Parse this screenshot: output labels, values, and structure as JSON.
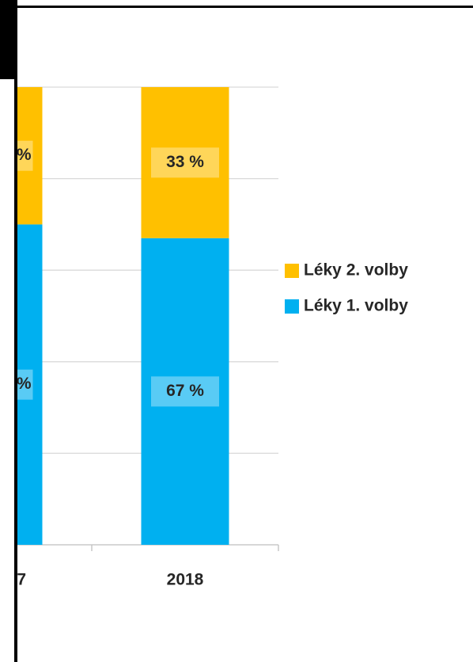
{
  "chart_data": {
    "type": "stacked_bar",
    "categories": [
      "7",
      "2018"
    ],
    "series": [
      {
        "name": "Léky 1. volby",
        "color": "#00b0f0",
        "values": [
          70,
          67
        ],
        "value_labels": [
          "%",
          "67 %"
        ]
      },
      {
        "name": "Léky 2. volby",
        "color": "#ffc000",
        "values": [
          30,
          33
        ],
        "value_labels": [
          "%",
          "33 %"
        ]
      }
    ],
    "ylim": [
      0,
      100
    ],
    "yticks": [
      0,
      20,
      40,
      60,
      80,
      100
    ],
    "grid": true,
    "legend": "right"
  }
}
